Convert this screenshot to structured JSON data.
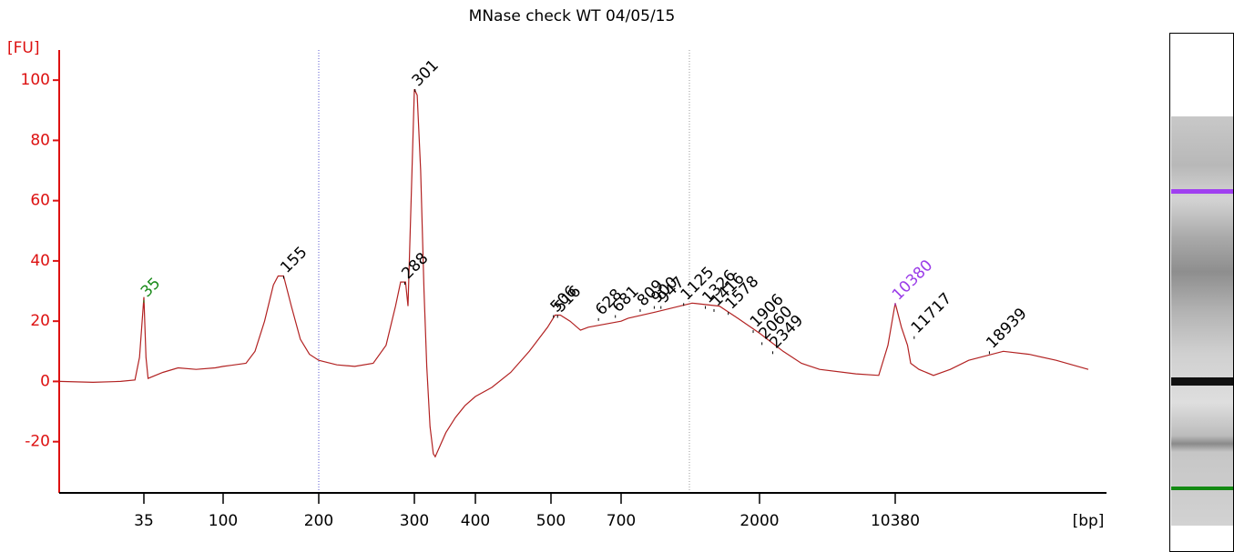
{
  "chart_data": {
    "type": "line",
    "title": "MNase check WT 04/05/15",
    "y_label": "[FU]",
    "x_label": "[bp]",
    "xlim": [
      20,
      40000
    ],
    "ylim": [
      -37,
      110
    ],
    "xticks": [
      35,
      100,
      200,
      300,
      400,
      500,
      700,
      2000,
      10380
    ],
    "yticks": [
      -20,
      0,
      20,
      40,
      60,
      80,
      100
    ],
    "series": [
      {
        "color": "#b22222",
        "x": [
          20,
          25,
          30,
          33,
          34,
          35,
          36,
          37,
          45,
          55,
          70,
          90,
          100,
          118,
          126,
          135,
          144,
          149,
          155,
          164,
          175,
          187,
          200,
          216,
          233,
          252,
          266,
          277,
          283,
          289,
          292,
          297,
          300,
          304,
          309,
          314,
          318,
          323,
          328,
          331,
          348,
          364,
          381,
          400,
          420,
          444,
          469,
          495,
          510,
          523,
          548,
          576,
          598,
          700,
          739,
          907,
          1199,
          1476,
          1694,
          2000,
          2664,
          3326,
          4150,
          6440,
          8500,
          9500,
          10380,
          10800,
          11230,
          11460,
          12080,
          13250,
          14760,
          16600,
          20700,
          24400,
          29000,
          35600
        ],
        "values": [
          0,
          -0.3,
          0,
          0.5,
          8,
          28,
          8,
          1,
          3,
          4.5,
          4,
          4.5,
          5,
          6,
          10,
          20,
          32,
          35,
          35,
          25,
          14,
          9,
          7,
          5.5,
          5,
          6,
          12,
          25,
          33,
          33,
          25,
          70,
          97,
          95,
          70,
          30,
          5,
          -15,
          -24,
          -25,
          -17,
          -12,
          -8,
          -5,
          -2,
          3,
          10,
          18,
          22,
          22,
          20,
          17,
          18,
          20,
          21,
          23,
          26,
          25,
          21,
          16,
          10,
          6,
          4,
          2.5,
          2,
          12,
          26,
          18,
          12,
          6,
          4,
          2,
          4,
          7,
          10,
          9,
          7,
          4
        ]
      }
    ],
    "peaks": {
      "values": [
        35,
        155,
        288,
        301,
        506,
        516,
        628,
        681,
        809,
        900,
        947,
        1125,
        1326,
        1416,
        1578,
        1906,
        2060,
        2349,
        10380,
        11717,
        18939
      ],
      "heights": [
        27,
        35,
        33,
        97,
        22,
        22,
        21,
        22,
        24,
        25,
        25,
        26,
        25,
        24,
        23,
        17,
        13,
        10,
        26,
        15,
        10
      ],
      "colors": [
        "#1a8a1a",
        "#000000",
        "#000000",
        "#000000",
        "#000000",
        "#000000",
        "#000000",
        "#000000",
        "#000000",
        "#000000",
        "#000000",
        "#000000",
        "#000000",
        "#000000",
        "#000000",
        "#000000",
        "#000000",
        "#000000",
        "#9b3de8",
        "#000000",
        "#000000"
      ]
    },
    "y_axis_color": "#dd1111"
  }
}
